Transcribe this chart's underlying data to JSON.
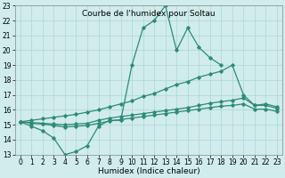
{
  "title": "Courbe de l'humidex pour Soltau",
  "xlabel": "Humidex (Indice chaleur)",
  "line1_x": [
    0,
    1,
    2,
    3,
    4,
    5,
    6,
    7,
    8,
    9,
    10,
    11,
    12,
    13,
    14,
    15,
    16,
    17,
    18
  ],
  "line1_y": [
    15.2,
    14.9,
    14.6,
    14.1,
    13.0,
    13.2,
    13.6,
    14.9,
    15.3,
    15.3,
    19.0,
    21.5,
    22.0,
    23.0,
    20.0,
    21.5,
    20.2,
    19.5,
    19.0
  ],
  "line2_x": [
    0,
    1,
    2,
    3,
    4,
    5,
    6,
    7,
    8,
    9,
    10,
    11,
    12,
    13,
    14,
    15,
    16,
    17,
    18,
    19,
    20,
    21,
    22,
    23
  ],
  "line2_y": [
    15.2,
    15.3,
    15.4,
    15.5,
    15.6,
    15.7,
    15.85,
    16.0,
    16.2,
    16.4,
    16.6,
    16.9,
    17.1,
    17.4,
    17.7,
    17.9,
    18.2,
    18.4,
    18.6,
    19.0,
    17.0,
    16.3,
    16.4,
    16.2
  ],
  "line3_x": [
    0,
    1,
    2,
    3,
    4,
    5,
    6,
    7,
    8,
    9,
    10,
    11,
    12,
    13,
    14,
    15,
    16,
    17,
    18,
    19,
    20,
    21,
    22,
    23
  ],
  "line3_y": [
    15.2,
    15.15,
    15.1,
    15.05,
    15.0,
    15.05,
    15.1,
    15.3,
    15.45,
    15.55,
    15.65,
    15.75,
    15.85,
    15.95,
    16.05,
    16.15,
    16.3,
    16.45,
    16.55,
    16.65,
    16.8,
    16.3,
    16.3,
    16.1
  ],
  "line4_x": [
    0,
    1,
    2,
    3,
    4,
    5,
    6,
    7,
    8,
    9,
    10,
    11,
    12,
    13,
    14,
    15,
    16,
    17,
    18,
    19,
    20,
    21,
    22,
    23
  ],
  "line4_y": [
    15.2,
    15.1,
    15.05,
    14.95,
    14.85,
    14.9,
    14.95,
    15.1,
    15.25,
    15.35,
    15.45,
    15.55,
    15.65,
    15.75,
    15.85,
    15.95,
    16.05,
    16.15,
    16.25,
    16.3,
    16.4,
    16.05,
    16.05,
    15.9
  ],
  "ylim": [
    13,
    23
  ],
  "xlim": [
    -0.5,
    23.5
  ],
  "yticks": [
    13,
    14,
    15,
    16,
    17,
    18,
    19,
    20,
    21,
    22,
    23
  ],
  "xticks": [
    0,
    1,
    2,
    3,
    4,
    5,
    6,
    7,
    8,
    9,
    10,
    11,
    12,
    13,
    14,
    15,
    16,
    17,
    18,
    19,
    20,
    21,
    22,
    23
  ],
  "line_color": "#2e8b72",
  "bg_color": "#d0ecec",
  "grid_color": "#aed4d4",
  "title_fontsize": 6.5,
  "label_fontsize": 6.5,
  "tick_fontsize": 5.5
}
